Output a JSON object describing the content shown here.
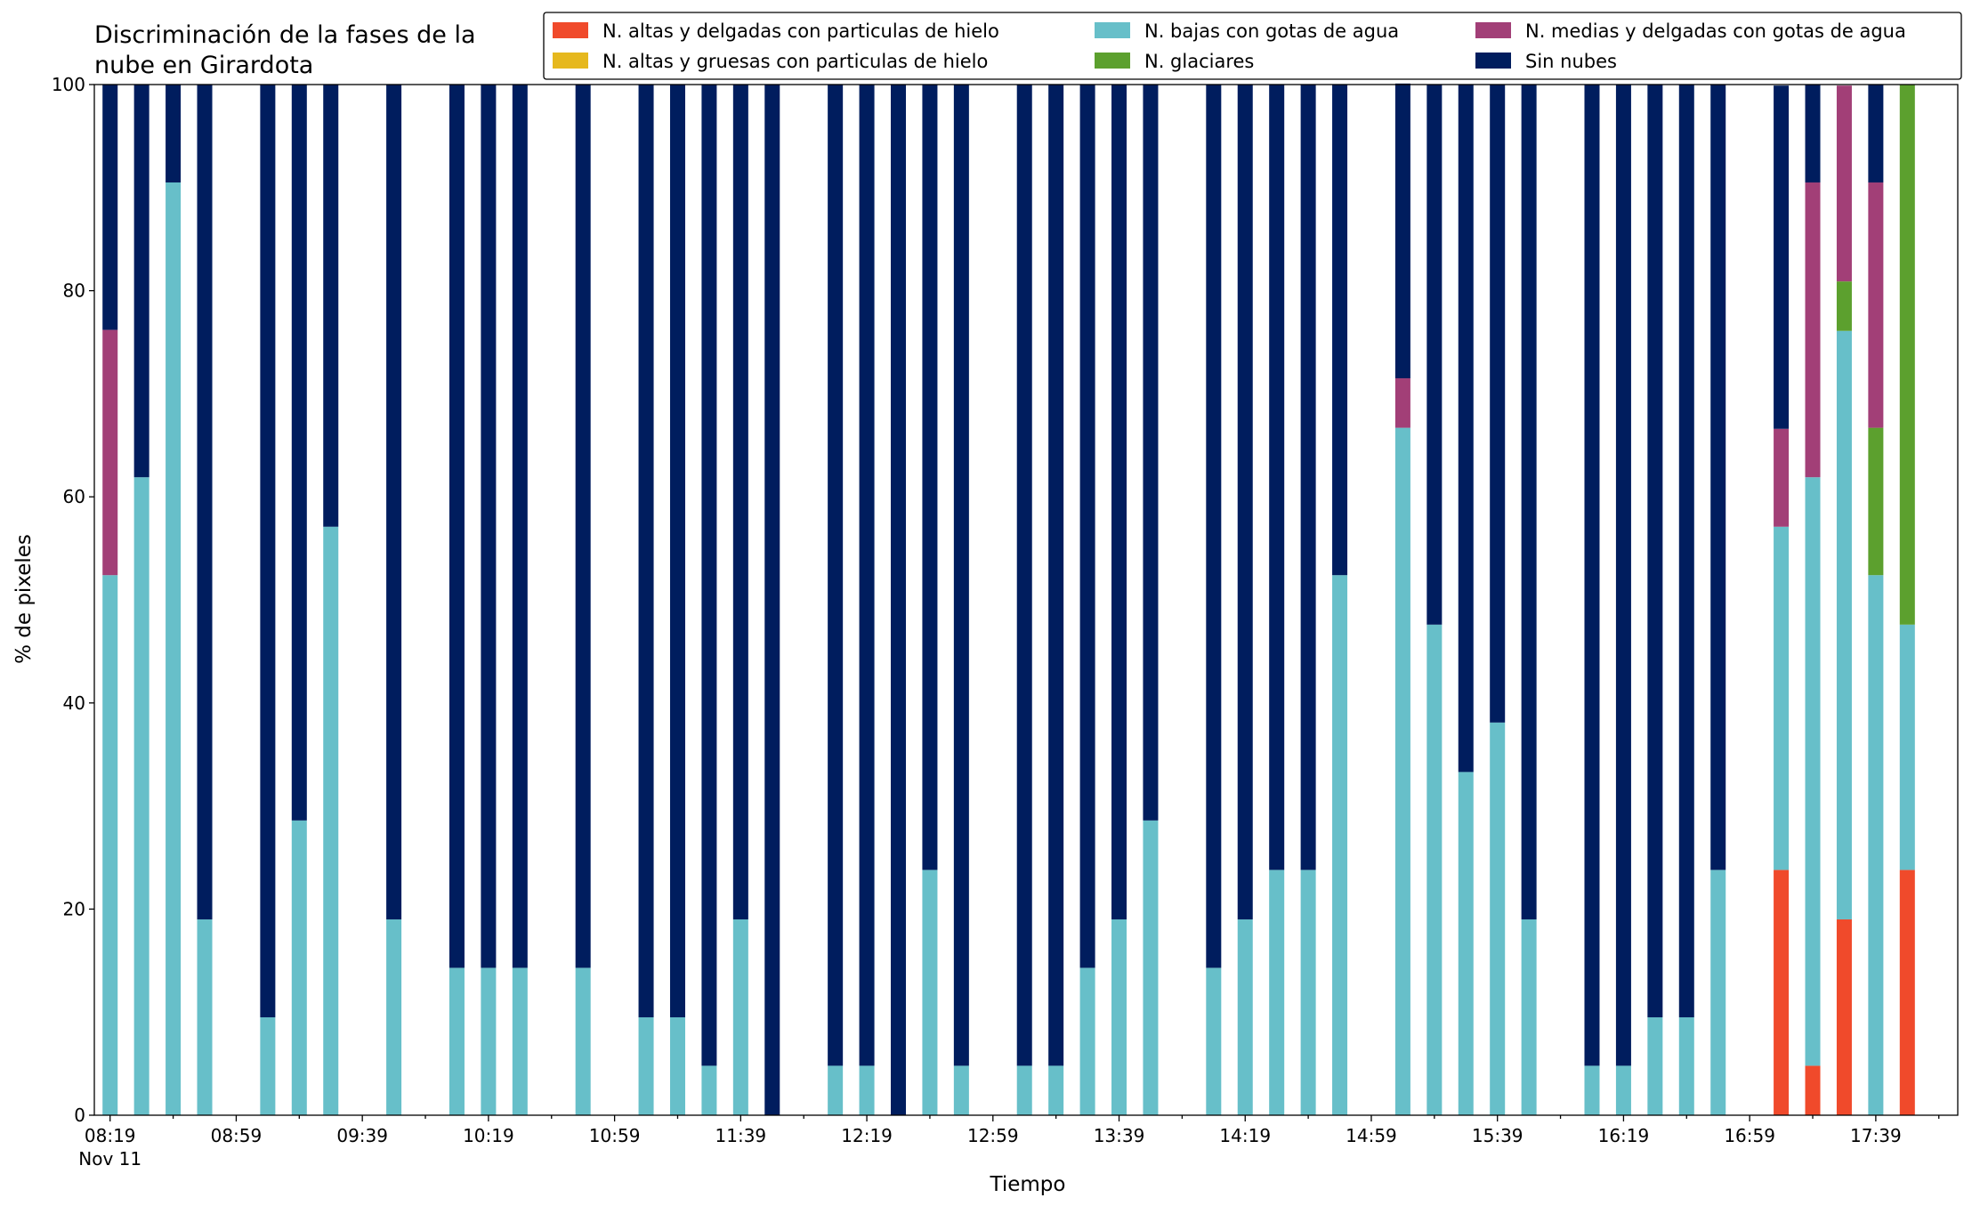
{
  "chart_data": {
    "type": "stacked_bar",
    "title": [
      "Discriminación de la fases de la",
      "nube en Girardota"
    ],
    "xlabel": "Tiempo",
    "ylabel": "% de pixeles",
    "x_date_label": "Nov 11",
    "x": [
      "08:19",
      "08:29",
      "08:39",
      "08:49",
      "09:09",
      "09:19",
      "09:29",
      "09:49",
      "10:09",
      "10:19",
      "10:29",
      "10:49",
      "11:09",
      "11:19",
      "11:29",
      "11:39",
      "11:49",
      "12:09",
      "12:19",
      "12:29",
      "12:39",
      "12:49",
      "13:09",
      "13:19",
      "13:29",
      "13:39",
      "13:49",
      "14:09",
      "14:19",
      "14:29",
      "14:39",
      "14:49",
      "15:09",
      "15:19",
      "15:29",
      "15:39",
      "15:49",
      "16:09",
      "16:19",
      "16:29",
      "16:39",
      "16:49",
      "17:09",
      "17:19",
      "17:29",
      "17:39",
      "17:49"
    ],
    "xlim": [
      "08:14",
      "18:05"
    ],
    "xticks": [
      "08:19",
      "08:59",
      "09:39",
      "10:19",
      "10:59",
      "11:39",
      "12:19",
      "12:59",
      "13:39",
      "14:19",
      "14:59",
      "15:39",
      "16:19",
      "16:59",
      "17:39"
    ],
    "xminorticks": [
      "08:39",
      "09:19",
      "09:59",
      "10:39",
      "11:19",
      "11:59",
      "12:39",
      "13:19",
      "13:59",
      "14:39",
      "15:19",
      "15:59",
      "16:39",
      "17:19",
      "17:59"
    ],
    "ylim": [
      0,
      100
    ],
    "yticks": [
      0,
      20,
      40,
      60,
      80,
      100
    ],
    "series": [
      {
        "name": "N. altas y delgadas con particulas de hielo",
        "color": "#f04a2b",
        "values": [
          0,
          0,
          0,
          0,
          0,
          0,
          0,
          0,
          0,
          0,
          0,
          0,
          0,
          0,
          0,
          0,
          0,
          0,
          0,
          0,
          0,
          0,
          0,
          0,
          0,
          0,
          0,
          0,
          0,
          0,
          0,
          0,
          0,
          0,
          0,
          0,
          0,
          0,
          0,
          0,
          0,
          0,
          23.8,
          4.8,
          19.0,
          0,
          23.8
        ]
      },
      {
        "name": "N. altas y gruesas con particulas de hielo",
        "color": "#e6b81e",
        "values": [
          0,
          0,
          0,
          0,
          0,
          0,
          0,
          0,
          0,
          0,
          0,
          0,
          0,
          0,
          0,
          0,
          0,
          0,
          0,
          0,
          0,
          0,
          0,
          0,
          0,
          0,
          0,
          0,
          0,
          0,
          0,
          0,
          0,
          0,
          0,
          0,
          0,
          0,
          0,
          0,
          0,
          0,
          0,
          0,
          0,
          0,
          0
        ]
      },
      {
        "name": "N. bajas con gotas de agua",
        "color": "#67bfc9",
        "values": [
          52.4,
          61.9,
          90.5,
          19.0,
          9.5,
          28.6,
          57.1,
          19.0,
          14.3,
          14.3,
          14.3,
          14.3,
          9.5,
          9.5,
          4.8,
          19.0,
          0,
          4.8,
          4.8,
          0,
          23.8,
          4.8,
          4.8,
          4.8,
          14.3,
          19.0,
          28.6,
          14.3,
          19.0,
          23.8,
          23.8,
          52.4,
          66.7,
          47.6,
          33.3,
          38.1,
          19.0,
          4.8,
          4.8,
          9.5,
          9.5,
          23.8,
          33.3,
          57.1,
          57.1,
          52.4,
          23.8
        ]
      },
      {
        "name": "N. glaciares",
        "color": "#5ca02e",
        "values": [
          0,
          0,
          0,
          0,
          0,
          0,
          0,
          0,
          0,
          0,
          0,
          0,
          0,
          0,
          0,
          0,
          0,
          0,
          0,
          0,
          0,
          0,
          0,
          0,
          0,
          0,
          0,
          0,
          0,
          0,
          0,
          0,
          0,
          0,
          0,
          0,
          0,
          0,
          0,
          0,
          0,
          0,
          0,
          0,
          4.8,
          14.3,
          52.4
        ]
      },
      {
        "name": "N. medias y delgadas con gotas de agua",
        "color": "#a23f77",
        "values": [
          23.8,
          0,
          0,
          0,
          0,
          0,
          0,
          0,
          0,
          0,
          0,
          0,
          0,
          0,
          0,
          0,
          0,
          0,
          0,
          0,
          0,
          0,
          0,
          0,
          0,
          0,
          0,
          0,
          0,
          0,
          0,
          0,
          4.8,
          0,
          0,
          0,
          0,
          0,
          0,
          0,
          0,
          0,
          9.5,
          28.6,
          19.0,
          23.8,
          0
        ]
      },
      {
        "name": "Sin nubes",
        "color": "#001d5e",
        "values": [
          23.8,
          38.1,
          9.5,
          81.0,
          90.5,
          71.4,
          42.9,
          81.0,
          85.7,
          85.7,
          85.7,
          85.7,
          90.5,
          90.5,
          95.2,
          81.0,
          100,
          95.2,
          95.2,
          100,
          76.2,
          95.2,
          95.2,
          95.2,
          85.7,
          81.0,
          71.4,
          85.7,
          81.0,
          76.2,
          76.2,
          47.6,
          28.6,
          52.4,
          66.7,
          61.9,
          81.0,
          95.2,
          95.2,
          90.5,
          90.5,
          76.2,
          33.3,
          9.5,
          0,
          9.5,
          0
        ]
      }
    ]
  }
}
